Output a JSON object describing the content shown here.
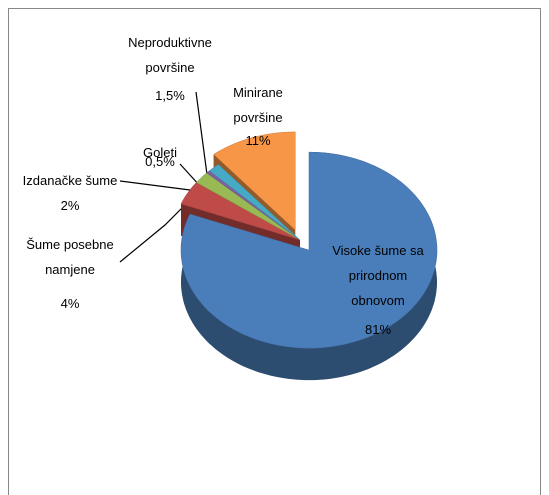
{
  "chart_data": {
    "type": "pie",
    "categories": [
      "Visoke šume sa prirodnom obnovom",
      "Šume posebne namjene",
      "Izdanačke šume",
      "Goleti",
      "Neproduktivne površine",
      "Minirane površine"
    ],
    "values": [
      81,
      4,
      2,
      0.5,
      1.5,
      11
    ],
    "value_labels": [
      "81%",
      "4%",
      "2%",
      "0,5%",
      "1,5%",
      "11%"
    ],
    "colors": [
      "#4a7ebb",
      "#be4b48",
      "#98b954",
      "#7d60a0",
      "#46aac5",
      "#f79646"
    ]
  }
}
